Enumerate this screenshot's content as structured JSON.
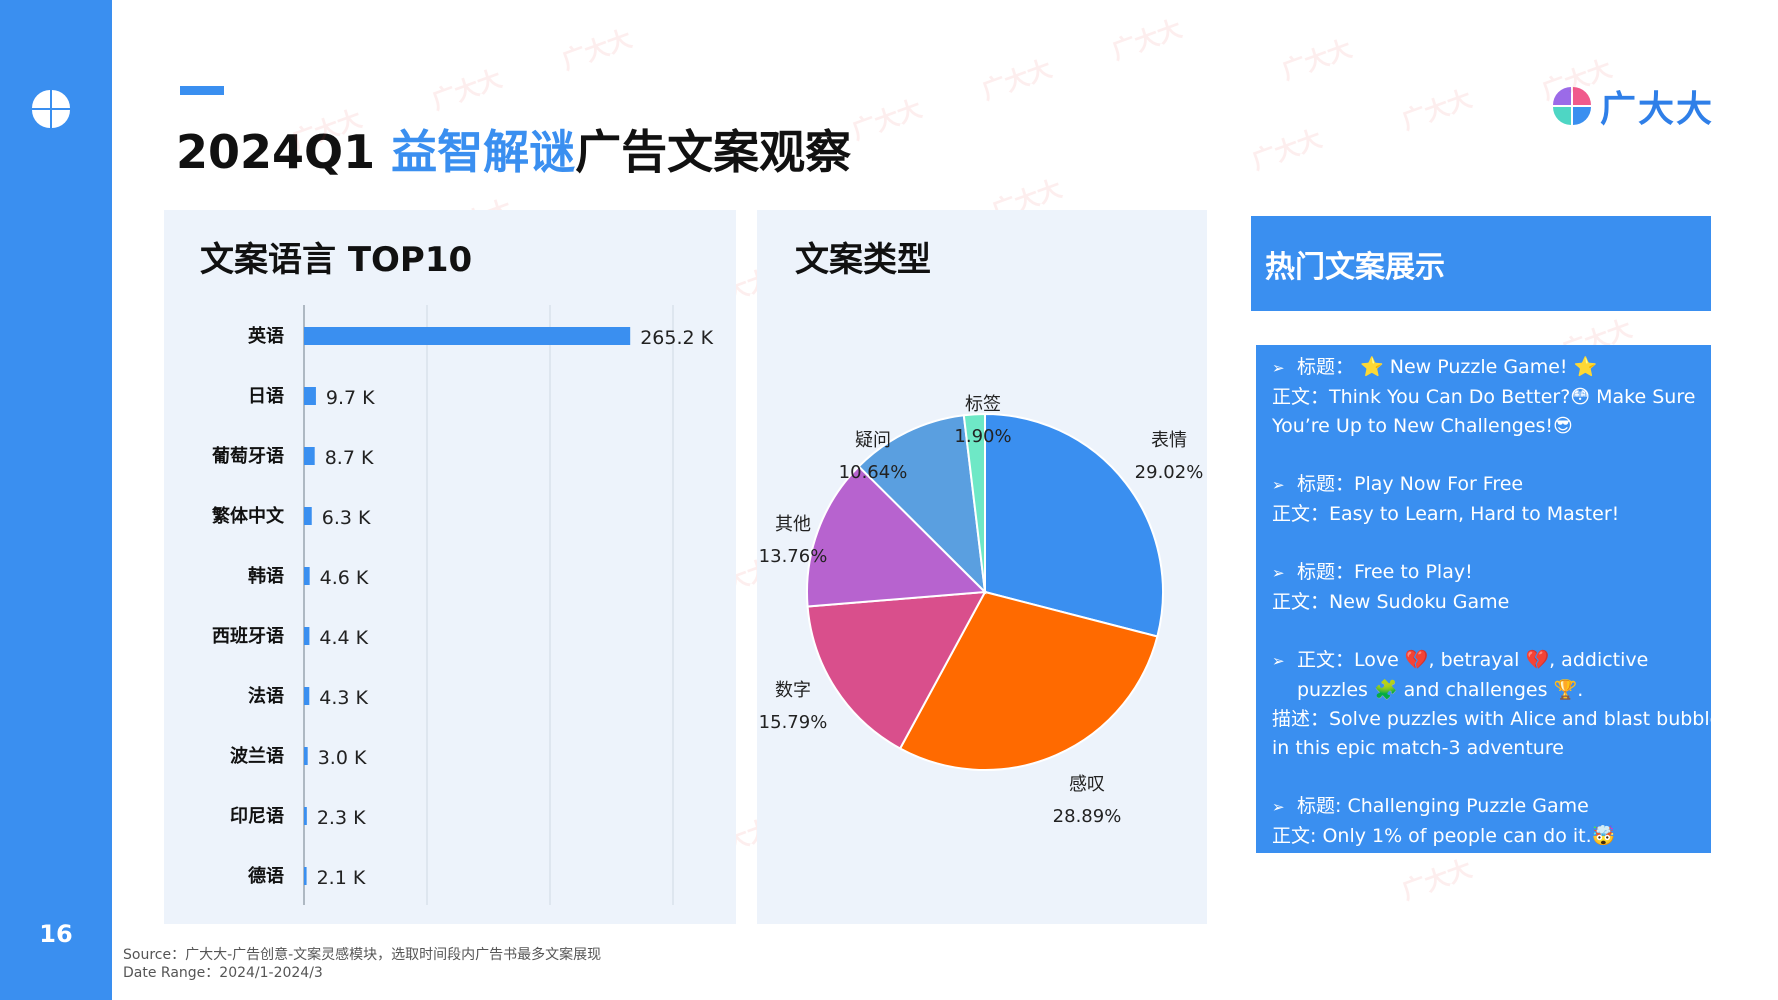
{
  "page": {
    "number": "16",
    "title_year": "2024Q1",
    "title_highlight": "益智解谜",
    "title_rest": "广告文案观察",
    "brand_name": "广大大",
    "watermark_text": "广大大",
    "source_line": "Source：广大大-广告创意-文案灵感模块，选取时间段内广告书最多文案展现",
    "date_line": "Date Range：2024/1-2024/3"
  },
  "colors": {
    "accent": "#3a8ff0",
    "bar": "#3a8ff0",
    "panel_bg": "#edf3fb",
    "grid": "#cfd8e3",
    "pie": [
      "#3a8ff0",
      "#ff6a00",
      "#d94f8c",
      "#b763cf",
      "#5a9fe0",
      "#6ee8c6"
    ]
  },
  "bar_panel_title": "文案语言 TOP10",
  "pie_panel_title": "文案类型",
  "chart_data": [
    {
      "type": "bar",
      "orientation": "horizontal",
      "title": "文案语言 TOP10",
      "categories": [
        "英语",
        "日语",
        "葡萄牙语",
        "繁体中文",
        "韩语",
        "西班牙语",
        "法语",
        "波兰语",
        "印尼语",
        "德语"
      ],
      "values": [
        265.2,
        9.7,
        8.7,
        6.3,
        4.6,
        4.4,
        4.3,
        3.0,
        2.3,
        2.1
      ],
      "value_labels": [
        "265.2 K",
        "9.7 K",
        "8.7 K",
        "6.3 K",
        "4.6 K",
        "4.4 K",
        "4.3 K",
        "3.0 K",
        "2.3 K",
        "2.1 K"
      ],
      "unit": "K",
      "xlim": [
        0,
        400
      ],
      "grid": true
    },
    {
      "type": "pie",
      "title": "文案类型",
      "labels": [
        "表情",
        "感叹",
        "数字",
        "其他",
        "疑问",
        "标签"
      ],
      "values": [
        29.02,
        28.89,
        15.79,
        13.76,
        10.64,
        1.9
      ],
      "value_labels": [
        "29.02%",
        "28.89%",
        "15.79%",
        "13.76%",
        "10.64%",
        "1.90%"
      ]
    }
  ],
  "copy_panel": {
    "title": "热门文案展示",
    "items": [
      {
        "lines": [
          "标题： ⭐ New Puzzle Game! ⭐",
          "正文：Think You Can Do Better?😳 Make Sure",
          "You’re Up to New Challenges!😎"
        ]
      },
      {
        "lines": [
          "标题：Play Now For Free",
          "正文：Easy to Learn, Hard to Master!"
        ]
      },
      {
        "lines": [
          "标题：Free to Play!",
          "正文：New Sudoku Game"
        ]
      },
      {
        "lines": [
          "正文：Love 💔, betrayal 💔, addictive",
          "puzzles 🧩 and challenges 🏆.",
          "描述：Solve puzzles with Alice and blast bubbles",
          "in this epic match-3 adventure"
        ]
      },
      {
        "lines": [
          "标题: Challenging Puzzle Game",
          "正文: Only 1% of people can do it.🤯"
        ]
      }
    ]
  }
}
